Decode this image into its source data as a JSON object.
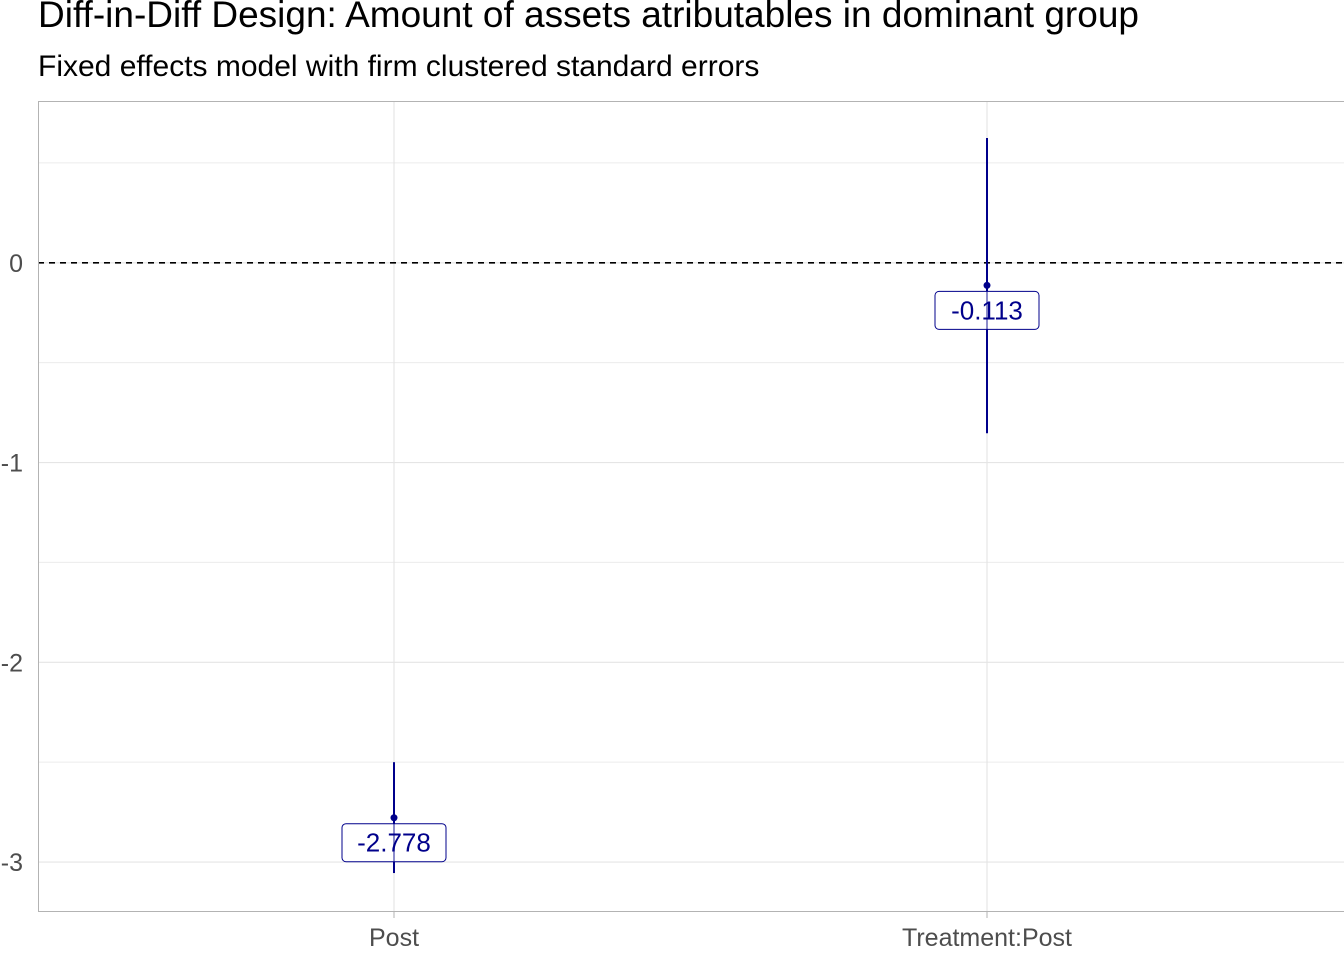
{
  "chart_data": {
    "type": "scatter",
    "title": "Diff-in-Diff Design: Amount of assets atributables in dominant group",
    "subtitle": "Fixed effects model with firm clustered standard errors",
    "xlabel": "",
    "ylabel": "",
    "categories": [
      "Post",
      "Treatment:Post"
    ],
    "series": [
      {
        "values": [
          -2.778,
          -0.113
        ],
        "ci_low": [
          -3.055,
          -0.853
        ],
        "ci_high": [
          -2.5,
          0.625
        ],
        "labels": [
          "-2.778",
          "-0.113"
        ]
      }
    ],
    "ylim": [
      -3.25,
      0.81
    ],
    "yticks": [
      0,
      -1,
      -2,
      -3
    ],
    "ytick_labels": [
      "0",
      "-1",
      "-2",
      "-3"
    ],
    "reference_line": 0,
    "grid": true,
    "legend": "none",
    "colors": {
      "estimate": "#00008B",
      "grid": "#e5e5e5",
      "reference": "#000000",
      "axis_text": "#4d4d4d"
    }
  }
}
